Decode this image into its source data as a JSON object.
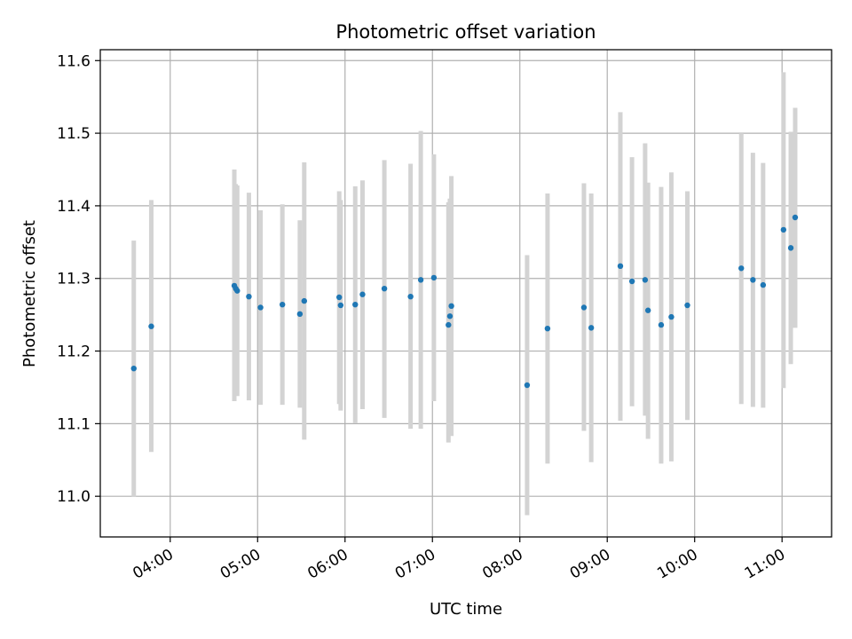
{
  "chart_data": {
    "type": "scatter",
    "title": "Photometric offset variation",
    "xlabel": "UTC time",
    "ylabel": "Photometric offset",
    "xlim": [
      "03:12",
      "11:34"
    ],
    "ylim": [
      10.944,
      11.615
    ],
    "x_ticks": [
      "04:00",
      "05:00",
      "06:00",
      "07:00",
      "08:00",
      "09:00",
      "10:00",
      "11:00"
    ],
    "y_ticks": [
      "11.0",
      "11.1",
      "11.2",
      "11.3",
      "11.4",
      "11.5",
      "11.6"
    ],
    "grid": true,
    "colors": {
      "point": "#1f77b4",
      "errorbar": "#d3d3d3",
      "grid": "#b0b0b0"
    },
    "series": [
      {
        "points": [
          {
            "t": "03:35",
            "y": 11.176,
            "lo": 10.999,
            "hi": 11.352
          },
          {
            "t": "03:47",
            "y": 11.234,
            "lo": 11.061,
            "hi": 11.408
          },
          {
            "t": "04:44",
            "y": 11.29,
            "lo": 11.131,
            "hi": 11.45
          },
          {
            "t": "04:45",
            "y": 11.286,
            "lo": 11.142,
            "hi": 11.43
          },
          {
            "t": "04:46",
            "y": 11.283,
            "lo": 11.138,
            "hi": 11.428
          },
          {
            "t": "04:54",
            "y": 11.275,
            "lo": 11.132,
            "hi": 11.418
          },
          {
            "t": "05:02",
            "y": 11.26,
            "lo": 11.126,
            "hi": 11.394
          },
          {
            "t": "05:17",
            "y": 11.264,
            "lo": 11.126,
            "hi": 11.402
          },
          {
            "t": "05:29",
            "y": 11.251,
            "lo": 11.122,
            "hi": 11.38
          },
          {
            "t": "05:32",
            "y": 11.269,
            "lo": 11.078,
            "hi": 11.46
          },
          {
            "t": "05:56",
            "y": 11.274,
            "lo": 11.127,
            "hi": 11.42
          },
          {
            "t": "05:57",
            "y": 11.263,
            "lo": 11.118,
            "hi": 11.408
          },
          {
            "t": "06:07",
            "y": 11.264,
            "lo": 11.101,
            "hi": 11.427
          },
          {
            "t": "06:12",
            "y": 11.278,
            "lo": 11.12,
            "hi": 11.435
          },
          {
            "t": "06:27",
            "y": 11.286,
            "lo": 11.108,
            "hi": 11.463
          },
          {
            "t": "06:45",
            "y": 11.275,
            "lo": 11.093,
            "hi": 11.458
          },
          {
            "t": "06:52",
            "y": 11.298,
            "lo": 11.093,
            "hi": 11.503
          },
          {
            "t": "07:01",
            "y": 11.301,
            "lo": 11.131,
            "hi": 11.471
          },
          {
            "t": "07:11",
            "y": 11.236,
            "lo": 11.074,
            "hi": 11.405
          },
          {
            "t": "07:12",
            "y": 11.248,
            "lo": 11.087,
            "hi": 11.41
          },
          {
            "t": "07:13",
            "y": 11.262,
            "lo": 11.083,
            "hi": 11.441
          },
          {
            "t": "08:05",
            "y": 11.153,
            "lo": 10.974,
            "hi": 11.332
          },
          {
            "t": "08:19",
            "y": 11.231,
            "lo": 11.045,
            "hi": 11.417
          },
          {
            "t": "08:44",
            "y": 11.26,
            "lo": 11.09,
            "hi": 11.431
          },
          {
            "t": "08:49",
            "y": 11.232,
            "lo": 11.047,
            "hi": 11.417
          },
          {
            "t": "09:09",
            "y": 11.317,
            "lo": 11.104,
            "hi": 11.529
          },
          {
            "t": "09:17",
            "y": 11.296,
            "lo": 11.124,
            "hi": 11.467
          },
          {
            "t": "09:26",
            "y": 11.298,
            "lo": 11.111,
            "hi": 11.486
          },
          {
            "t": "09:28",
            "y": 11.256,
            "lo": 11.079,
            "hi": 11.432
          },
          {
            "t": "09:37",
            "y": 11.236,
            "lo": 11.045,
            "hi": 11.426
          },
          {
            "t": "09:44",
            "y": 11.247,
            "lo": 11.048,
            "hi": 11.446
          },
          {
            "t": "09:55",
            "y": 11.263,
            "lo": 11.105,
            "hi": 11.42
          },
          {
            "t": "10:32",
            "y": 11.314,
            "lo": 11.127,
            "hi": 11.5
          },
          {
            "t": "10:40",
            "y": 11.298,
            "lo": 11.123,
            "hi": 11.473
          },
          {
            "t": "10:47",
            "y": 11.291,
            "lo": 11.122,
            "hi": 11.459
          },
          {
            "t": "11:01",
            "y": 11.367,
            "lo": 11.149,
            "hi": 11.584
          },
          {
            "t": "11:06",
            "y": 11.342,
            "lo": 11.182,
            "hi": 11.502
          },
          {
            "t": "11:09",
            "y": 11.384,
            "lo": 11.232,
            "hi": 11.535
          }
        ]
      }
    ]
  }
}
